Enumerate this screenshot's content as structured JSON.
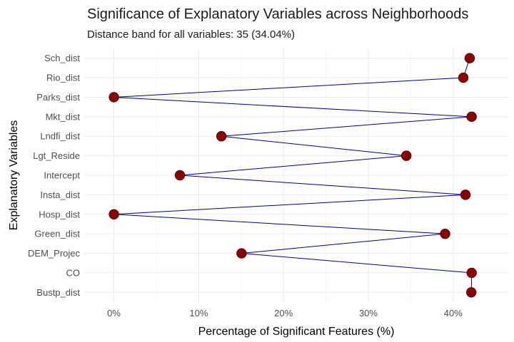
{
  "chart_data": {
    "type": "line",
    "title": "Significance of Explanatory Variables across Neighborhoods",
    "subtitle": "Distance band for all variables: 35 (34.04%)",
    "xlabel": "Percentage of Significant Features (%)",
    "ylabel": "Explanatory Variables",
    "xlim": [
      -0.035,
      0.465
    ],
    "x_ticks": [
      0,
      0.1,
      0.2,
      0.3,
      0.4
    ],
    "x_tick_labels": [
      "0%",
      "10%",
      "20%",
      "30%",
      "40%"
    ],
    "categories": [
      "Bustp_dist",
      "CO",
      "DEM_Projec",
      "Green_dist",
      "Hosp_dist",
      "Insta_dist",
      "Intercept",
      "Lgt_Reside",
      "Lndfi_dist",
      "Mkt_dist",
      "Parks_dist",
      "Rio_dist",
      "Sch_dist"
    ],
    "values": [
      0.4214,
      0.4218,
      0.1505,
      0.3905,
      0.0,
      0.4145,
      0.0778,
      0.3448,
      0.1267,
      0.4218,
      0.0,
      0.412,
      0.4195
    ],
    "grid": true,
    "line_color": "#00008b",
    "point_color": "#8b0000",
    "point_edge_color": "#4d0000"
  }
}
